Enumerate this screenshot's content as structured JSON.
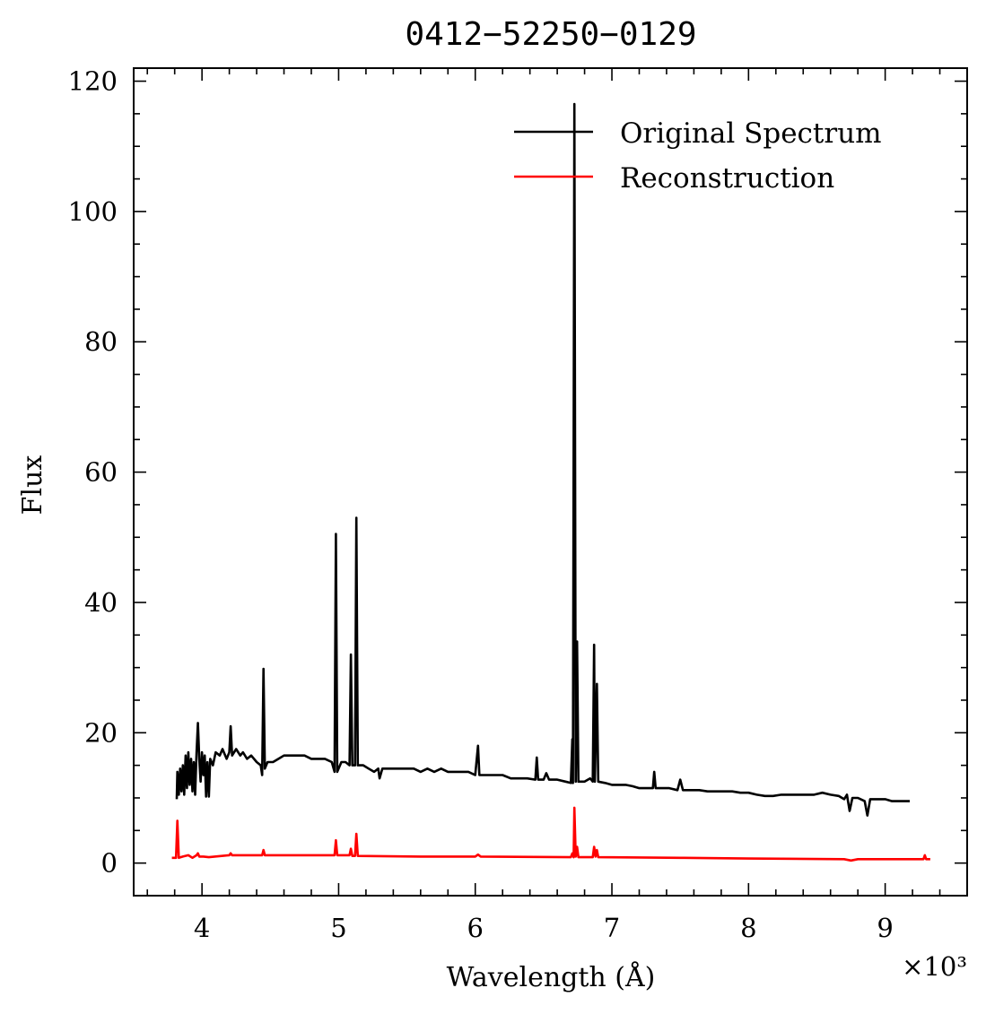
{
  "chart_data": {
    "type": "line",
    "title": "0412−52250−0129",
    "xlabel": "Wavelength (Å)",
    "ylabel": "Flux",
    "x_offset_text": "×10³",
    "xlim": [
      3.5,
      9.6
    ],
    "ylim": [
      -5,
      122
    ],
    "x_scale_factor": 1000,
    "x_ticks": [
      "4",
      "5",
      "6",
      "7",
      "8",
      "9"
    ],
    "y_ticks": [
      "0",
      "20",
      "40",
      "60",
      "80",
      "100",
      "120"
    ],
    "legend_position": "top-right",
    "grid": false,
    "series": [
      {
        "name": "Original Spectrum",
        "color": "#000000",
        "points": [
          [
            3.815,
            9.8
          ],
          [
            3.82,
            14.0
          ],
          [
            3.83,
            10.5
          ],
          [
            3.84,
            14.5
          ],
          [
            3.85,
            11.0
          ],
          [
            3.86,
            15.0
          ],
          [
            3.87,
            10.5
          ],
          [
            3.88,
            16.5
          ],
          [
            3.89,
            11.5
          ],
          [
            3.9,
            17.0
          ],
          [
            3.91,
            12.0
          ],
          [
            3.92,
            16.0
          ],
          [
            3.93,
            11.0
          ],
          [
            3.94,
            15.5
          ],
          [
            3.95,
            10.5
          ],
          [
            3.96,
            17.0
          ],
          [
            3.97,
            21.5
          ],
          [
            3.98,
            16.0
          ],
          [
            3.99,
            12.5
          ],
          [
            4.0,
            17.0
          ],
          [
            4.01,
            13.5
          ],
          [
            4.02,
            16.5
          ],
          [
            4.03,
            10.2
          ],
          [
            4.04,
            15.5
          ],
          [
            4.05,
            10.2
          ],
          [
            4.06,
            16.0
          ],
          [
            4.08,
            15.0
          ],
          [
            4.1,
            17.0
          ],
          [
            4.13,
            16.5
          ],
          [
            4.15,
            17.5
          ],
          [
            4.18,
            16.0
          ],
          [
            4.2,
            17.0
          ],
          [
            4.21,
            21.0
          ],
          [
            4.22,
            16.5
          ],
          [
            4.25,
            17.5
          ],
          [
            4.28,
            16.5
          ],
          [
            4.3,
            17.0
          ],
          [
            4.33,
            16.0
          ],
          [
            4.36,
            16.5
          ],
          [
            4.4,
            15.5
          ],
          [
            4.43,
            15.0
          ],
          [
            4.44,
            13.5
          ],
          [
            4.45,
            29.8
          ],
          [
            4.46,
            14.5
          ],
          [
            4.48,
            15.5
          ],
          [
            4.52,
            15.5
          ],
          [
            4.56,
            16.0
          ],
          [
            4.6,
            16.5
          ],
          [
            4.65,
            16.5
          ],
          [
            4.7,
            16.5
          ],
          [
            4.75,
            16.5
          ],
          [
            4.8,
            16.0
          ],
          [
            4.85,
            16.0
          ],
          [
            4.9,
            16.0
          ],
          [
            4.95,
            15.5
          ],
          [
            4.97,
            14.0
          ],
          [
            4.98,
            50.5
          ],
          [
            4.99,
            14.0
          ],
          [
            5.02,
            15.5
          ],
          [
            5.05,
            15.5
          ],
          [
            5.08,
            15.0
          ],
          [
            5.09,
            32.0
          ],
          [
            5.1,
            15.0
          ],
          [
            5.12,
            15.0
          ],
          [
            5.13,
            53.0
          ],
          [
            5.14,
            15.0
          ],
          [
            5.18,
            15.0
          ],
          [
            5.22,
            14.5
          ],
          [
            5.26,
            14.0
          ],
          [
            5.29,
            14.5
          ],
          [
            5.3,
            13.0
          ],
          [
            5.32,
            14.5
          ],
          [
            5.36,
            14.5
          ],
          [
            5.4,
            14.5
          ],
          [
            5.45,
            14.5
          ],
          [
            5.5,
            14.5
          ],
          [
            5.55,
            14.5
          ],
          [
            5.6,
            14.0
          ],
          [
            5.65,
            14.5
          ],
          [
            5.7,
            14.0
          ],
          [
            5.75,
            14.5
          ],
          [
            5.8,
            14.0
          ],
          [
            5.85,
            14.0
          ],
          [
            5.9,
            14.0
          ],
          [
            5.95,
            14.0
          ],
          [
            6.0,
            13.5
          ],
          [
            6.02,
            18.0
          ],
          [
            6.03,
            13.5
          ],
          [
            6.08,
            13.5
          ],
          [
            6.14,
            13.5
          ],
          [
            6.2,
            13.5
          ],
          [
            6.26,
            13.0
          ],
          [
            6.32,
            13.0
          ],
          [
            6.38,
            13.0
          ],
          [
            6.44,
            12.8
          ],
          [
            6.45,
            16.2
          ],
          [
            6.46,
            12.8
          ],
          [
            6.5,
            12.8
          ],
          [
            6.52,
            13.8
          ],
          [
            6.54,
            12.8
          ],
          [
            6.6,
            12.8
          ],
          [
            6.66,
            12.5
          ],
          [
            6.7,
            12.3
          ],
          [
            6.71,
            19.0
          ],
          [
            6.715,
            12.3
          ],
          [
            6.725,
            116.5
          ],
          [
            6.735,
            12.5
          ],
          [
            6.745,
            34.0
          ],
          [
            6.755,
            12.5
          ],
          [
            6.8,
            12.5
          ],
          [
            6.84,
            13.0
          ],
          [
            6.86,
            12.5
          ],
          [
            6.87,
            33.5
          ],
          [
            6.875,
            12.5
          ],
          [
            6.89,
            27.5
          ],
          [
            6.9,
            12.5
          ],
          [
            6.95,
            12.3
          ],
          [
            7.0,
            12.0
          ],
          [
            7.05,
            12.0
          ],
          [
            7.1,
            12.0
          ],
          [
            7.15,
            11.8
          ],
          [
            7.2,
            11.5
          ],
          [
            7.25,
            11.5
          ],
          [
            7.3,
            11.5
          ],
          [
            7.31,
            14.0
          ],
          [
            7.32,
            11.5
          ],
          [
            7.36,
            11.5
          ],
          [
            7.42,
            11.5
          ],
          [
            7.48,
            11.2
          ],
          [
            7.5,
            12.8
          ],
          [
            7.52,
            11.2
          ],
          [
            7.58,
            11.2
          ],
          [
            7.64,
            11.2
          ],
          [
            7.7,
            11.0
          ],
          [
            7.76,
            11.0
          ],
          [
            7.82,
            11.0
          ],
          [
            7.88,
            11.0
          ],
          [
            7.94,
            10.8
          ],
          [
            8.0,
            10.8
          ],
          [
            8.06,
            10.5
          ],
          [
            8.12,
            10.3
          ],
          [
            8.18,
            10.3
          ],
          [
            8.24,
            10.5
          ],
          [
            8.3,
            10.5
          ],
          [
            8.36,
            10.5
          ],
          [
            8.42,
            10.5
          ],
          [
            8.48,
            10.5
          ],
          [
            8.54,
            10.8
          ],
          [
            8.6,
            10.5
          ],
          [
            8.66,
            10.3
          ],
          [
            8.7,
            9.8
          ],
          [
            8.72,
            10.5
          ],
          [
            8.74,
            8.0
          ],
          [
            8.76,
            10.0
          ],
          [
            8.8,
            10.0
          ],
          [
            8.85,
            9.5
          ],
          [
            8.87,
            7.3
          ],
          [
            8.89,
            9.8
          ],
          [
            8.95,
            9.8
          ],
          [
            9.0,
            9.8
          ],
          [
            9.05,
            9.5
          ],
          [
            9.1,
            9.5
          ],
          [
            9.15,
            9.5
          ],
          [
            9.18,
            9.5
          ]
        ]
      },
      {
        "name": "Reconstruction",
        "color": "#ff0000",
        "points": [
          [
            3.78,
            0.8
          ],
          [
            3.81,
            0.8
          ],
          [
            3.82,
            6.5
          ],
          [
            3.83,
            0.8
          ],
          [
            3.86,
            1.0
          ],
          [
            3.9,
            1.2
          ],
          [
            3.93,
            0.8
          ],
          [
            3.96,
            1.2
          ],
          [
            3.97,
            1.5
          ],
          [
            3.98,
            1.0
          ],
          [
            4.01,
            1.0
          ],
          [
            4.05,
            0.9
          ],
          [
            4.2,
            1.2
          ],
          [
            4.21,
            1.5
          ],
          [
            4.22,
            1.2
          ],
          [
            4.44,
            1.2
          ],
          [
            4.45,
            2.0
          ],
          [
            4.46,
            1.2
          ],
          [
            4.7,
            1.2
          ],
          [
            4.97,
            1.2
          ],
          [
            4.98,
            3.5
          ],
          [
            4.99,
            1.2
          ],
          [
            5.08,
            1.2
          ],
          [
            5.09,
            2.2
          ],
          [
            5.1,
            1.1
          ],
          [
            5.12,
            1.1
          ],
          [
            5.13,
            4.5
          ],
          [
            5.14,
            1.1
          ],
          [
            5.6,
            1.0
          ],
          [
            6.0,
            1.0
          ],
          [
            6.02,
            1.3
          ],
          [
            6.04,
            1.0
          ],
          [
            6.7,
            0.9
          ],
          [
            6.71,
            1.5
          ],
          [
            6.72,
            0.9
          ],
          [
            6.725,
            8.5
          ],
          [
            6.735,
            1.0
          ],
          [
            6.745,
            2.5
          ],
          [
            6.755,
            0.9
          ],
          [
            6.86,
            0.9
          ],
          [
            6.87,
            2.5
          ],
          [
            6.88,
            1.0
          ],
          [
            6.89,
            2.0
          ],
          [
            6.9,
            0.9
          ],
          [
            7.5,
            0.8
          ],
          [
            8.0,
            0.7
          ],
          [
            8.7,
            0.6
          ],
          [
            8.75,
            0.4
          ],
          [
            8.8,
            0.6
          ],
          [
            9.28,
            0.6
          ],
          [
            9.29,
            1.2
          ],
          [
            9.3,
            0.6
          ],
          [
            9.33,
            0.6
          ]
        ]
      }
    ]
  }
}
